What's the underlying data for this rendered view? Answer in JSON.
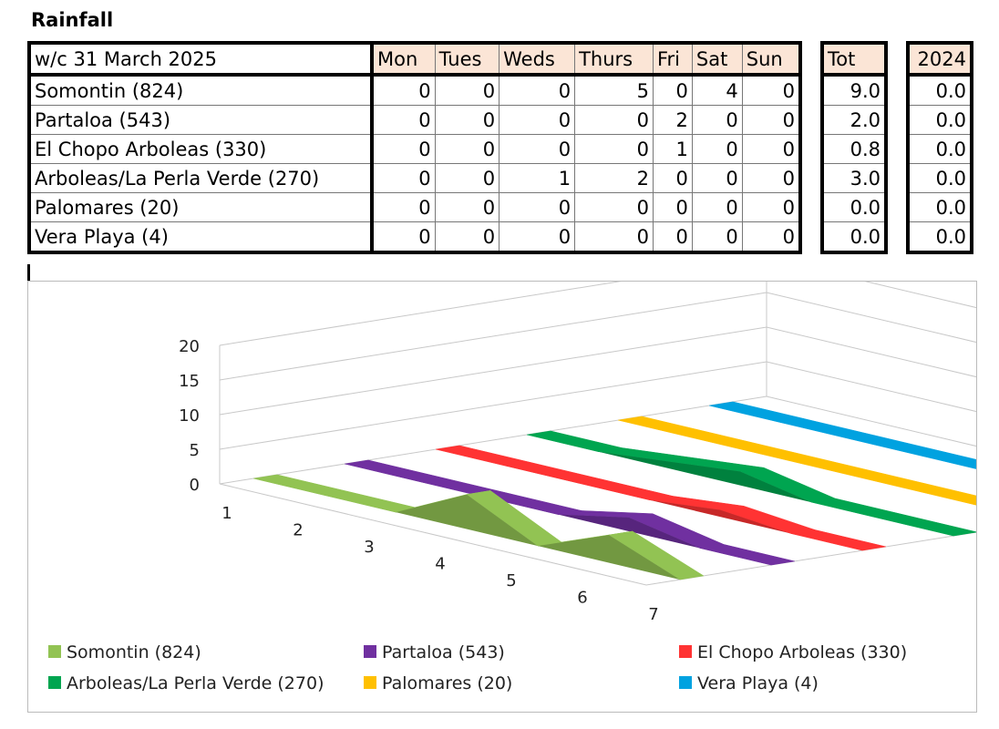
{
  "title": "Rainfall",
  "table": {
    "week_label": "w/c 31 March  2025",
    "days": [
      "Mon",
      "Tues",
      "Weds",
      "Thurs",
      "Fri",
      "Sat",
      "Sun"
    ],
    "tot_label": "Tot",
    "year_label": "2024",
    "rows": [
      {
        "site": "Somontin (824)",
        "values": [
          "0",
          "0",
          "0",
          "5",
          "0",
          "4",
          "0"
        ],
        "tot": "9.0",
        "y2024": "0.0"
      },
      {
        "site": "Partaloa (543)",
        "values": [
          "0",
          "0",
          "0",
          "0",
          "2",
          "0",
          "0"
        ],
        "tot": "2.0",
        "y2024": "0.0"
      },
      {
        "site": "El Chopo Arboleas (330)",
        "values": [
          "0",
          "0",
          "0",
          "0",
          "1",
          "0",
          "0"
        ],
        "tot": "0.8",
        "y2024": "0.0"
      },
      {
        "site": "Arboleas/La Perla Verde (270)",
        "values": [
          "0",
          "0",
          "1",
          "2",
          "0",
          "0",
          "0"
        ],
        "tot": "3.0",
        "y2024": "0.0"
      },
      {
        "site": "Palomares (20)",
        "values": [
          "0",
          "0",
          "0",
          "0",
          "0",
          "0",
          "0"
        ],
        "tot": "0.0",
        "y2024": "0.0"
      },
      {
        "site": "Vera Playa (4)",
        "values": [
          "0",
          "0",
          "0",
          "0",
          "0",
          "0",
          "0"
        ],
        "tot": "0.0",
        "y2024": "0.0"
      }
    ]
  },
  "chart_data": {
    "type": "area",
    "title": "",
    "xlabel": "",
    "ylabel": "",
    "x": [
      1,
      2,
      3,
      4,
      5,
      6,
      7
    ],
    "ylim": [
      0,
      20
    ],
    "yticks": [
      0,
      5,
      10,
      15,
      20
    ],
    "grid": true,
    "legend_position": "bottom",
    "series": [
      {
        "name": "Somontin (824)",
        "values": [
          0,
          0,
          0,
          5,
          0,
          4,
          0
        ],
        "color": "#92c353"
      },
      {
        "name": "Partaloa (543)",
        "values": [
          0,
          0,
          0,
          0,
          2,
          0,
          0
        ],
        "color": "#7030a0"
      },
      {
        "name": "El Chopo Arboleas (330)",
        "values": [
          0,
          0,
          0,
          0,
          1,
          0,
          0
        ],
        "color": "#ff3333"
      },
      {
        "name": "Arboleas/La Perla Verde (270)",
        "values": [
          0,
          0,
          1,
          2,
          0,
          0,
          0
        ],
        "color": "#00a550"
      },
      {
        "name": "Palomares (20)",
        "values": [
          0,
          0,
          0,
          0,
          0,
          0,
          0
        ],
        "color": "#ffc000"
      },
      {
        "name": "Vera Playa (4)",
        "values": [
          0,
          0,
          0,
          0,
          0,
          0,
          0
        ],
        "color": "#00a2e0"
      }
    ]
  }
}
